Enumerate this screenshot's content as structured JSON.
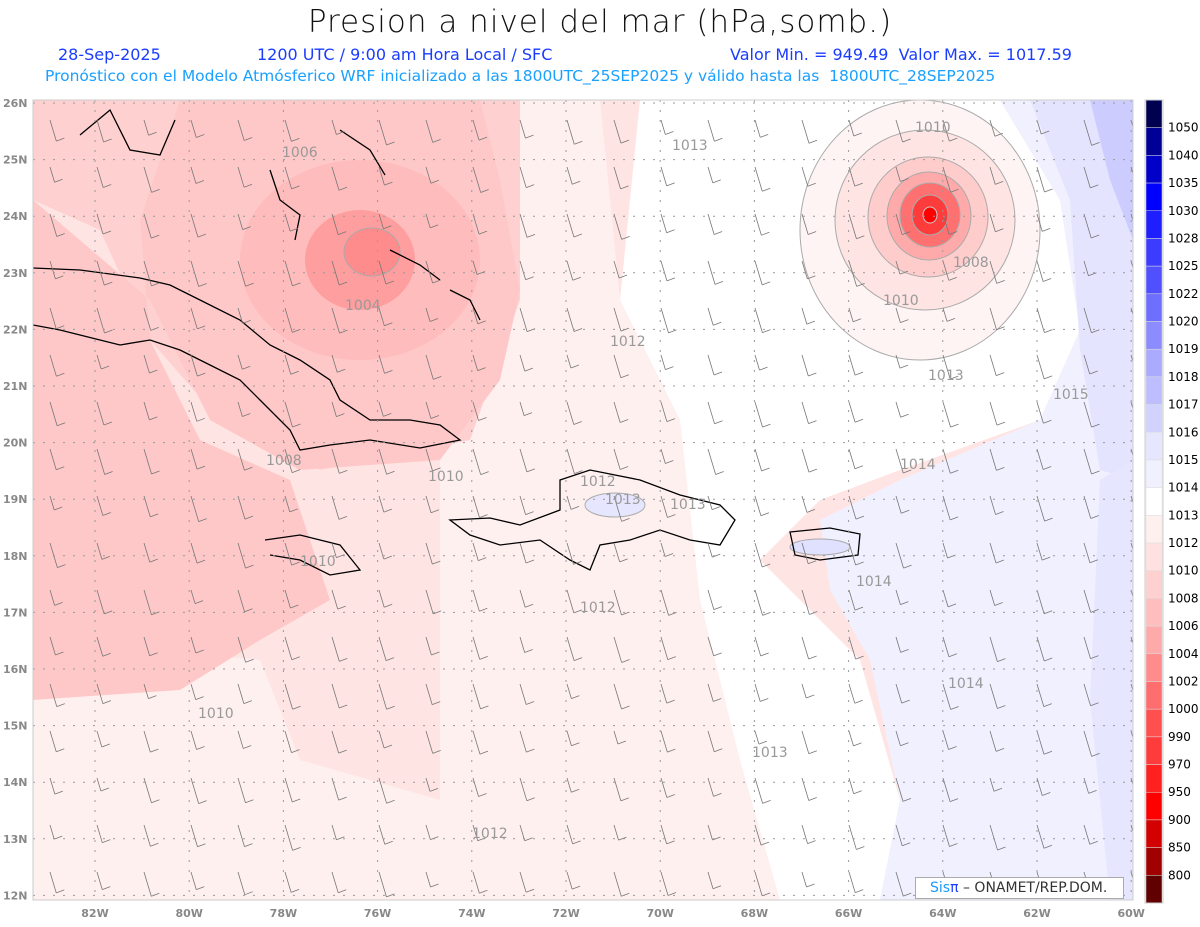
{
  "header": {
    "title": "Presion a nivel del mar (hPa,somb.)",
    "date": "28-Sep-2025",
    "time": "1200 UTC / 9:00 am Hora Local / SFC",
    "minmax": "Valor Min. = 949.49  Valor Max. = 1017.59",
    "forecast": "Pronóstico con el Modelo Atmósferico WRF inicializado a las 1800UTC_25SEP2025 y válido hasta las  1800UTC_28SEP2025"
  },
  "axes": {
    "lon_labels": [
      "82W",
      "80W",
      "78W",
      "76W",
      "74W",
      "72W",
      "70W",
      "68W",
      "66W",
      "64W",
      "62W",
      "60W"
    ],
    "lat_labels": [
      "26N",
      "25N",
      "24N",
      "23N",
      "22N",
      "21N",
      "20N",
      "19N",
      "18N",
      "17N",
      "16N",
      "15N",
      "14N",
      "13N",
      "12N"
    ]
  },
  "contour_labels": [
    "1006",
    "1004",
    "1013",
    "1010",
    "1008",
    "1010",
    "1013",
    "1012",
    "1015",
    "1008",
    "1014",
    "1010",
    "1012",
    "1013",
    "1013",
    "1014",
    "1012",
    "1010",
    "1014",
    "1010",
    "1013",
    "1012"
  ],
  "colorbar": {
    "labels": [
      "1050",
      "1040",
      "1035",
      "1030",
      "1028",
      "1025",
      "1022",
      "1020",
      "1019",
      "1018",
      "1017",
      "1016",
      "1015",
      "1014",
      "1013",
      "1012",
      "1010",
      "1008",
      "1006",
      "1004",
      "1002",
      "1000",
      "990",
      "970",
      "950",
      "900",
      "850",
      "800"
    ],
    "colors": [
      "#000050",
      "#000096",
      "#0000c8",
      "#0000ff",
      "#1e1eff",
      "#3c3cff",
      "#5050ff",
      "#6e6eff",
      "#8c8cff",
      "#aaaaff",
      "#bebeff",
      "#d2d2ff",
      "#e6e6ff",
      "#f0f0ff",
      "#ffffff",
      "#fff0f0",
      "#ffe1e1",
      "#ffd0d0",
      "#ffbebe",
      "#ffaaaa",
      "#ff8c8c",
      "#ff6e6e",
      "#ff5050",
      "#ff3c3c",
      "#ff2020",
      "#ff0000",
      "#d20000",
      "#a00000",
      "#600000"
    ]
  },
  "credit": {
    "brand_a": "Sis",
    "brand_b": "π",
    "text": "– ONAMET/REP.DOM."
  }
}
